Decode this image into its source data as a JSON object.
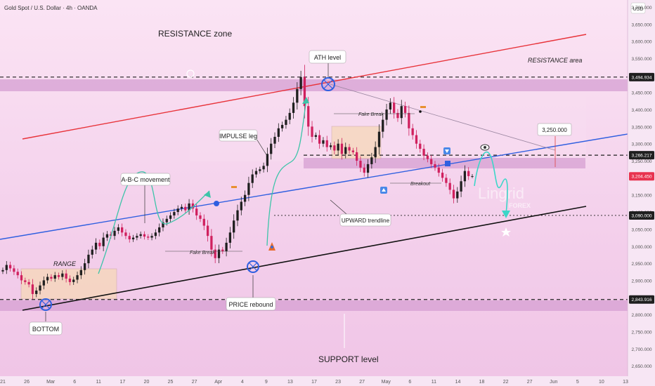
{
  "header": {
    "symbol": "Gold Spot / U.S. Dollar · 4h · OANDA",
    "currency": "USD"
  },
  "watermark": {
    "brand": "Lingrid",
    "sub": "FOREX"
  },
  "colors": {
    "candle_up": "#1f1f1f",
    "candle_down": "#d0205e",
    "zone_band": "#c98fc4",
    "channel_red": "#e8333a",
    "trendline_blue": "#2f5fe0",
    "support_black": "#111111",
    "projection_cyan": "#3cd6c8",
    "price_badge": "#e8334f"
  },
  "annotations": {
    "resistance_zone": "RESISTANCE zone",
    "resistance_area": "RESISTANCE area",
    "ath_level": "ATH level",
    "impulse_leg": "IMPULSE leg",
    "abc_movement": "A-B-C movement",
    "range": "RANGE",
    "bottom": "BOTTOM",
    "fake_break_1": "Fake Break",
    "fake_break_2": "Fake Break",
    "breakout": "Breakout",
    "price_rebound": "PRICE rebound",
    "upward_trendline": "UPWARD trendline",
    "support_level": "SUPPORT level",
    "target_box": "3,250.000"
  },
  "chart_data": {
    "type": "candlestick",
    "y_axis_unit": "USD",
    "ylim": [
      2640,
      3700
    ],
    "y_ticks": [
      "3,700.000",
      "3,650.000",
      "3,600.000",
      "3,550.000",
      "3,500.000",
      "3,450.000",
      "3,400.000",
      "3,350.000",
      "3,300.000",
      "3,250.000",
      "3,200.000",
      "3,150.000",
      "3,100.000",
      "3,050.000",
      "3,000.000",
      "2,950.000",
      "2,900.000",
      "2,850.000",
      "2,800.000",
      "2,750.000",
      "2,700.000",
      "2,650.000"
    ],
    "x_ticks": [
      "21",
      "26",
      "Mar",
      "6",
      "11",
      "17",
      "20",
      "25",
      "27",
      "Apr",
      "4",
      "9",
      "13",
      "17",
      "23",
      "27",
      "May",
      "6",
      "11",
      "14",
      "18",
      "22",
      "27",
      "Jun",
      "5",
      "10",
      "13"
    ],
    "price_labels": [
      {
        "label": "3,494.934",
        "value": 3494.934,
        "color": "#1f1f1f"
      },
      {
        "label": "3,266.217",
        "value": 3266.217,
        "color": "#1f1f1f"
      },
      {
        "label": "3,204.450",
        "value": 3204.45,
        "color": "#e8334f"
      },
      {
        "label": "3,090.000",
        "value": 3090.0,
        "color": "#1f1f1f"
      },
      {
        "label": "2,843.916",
        "value": 2843.916,
        "color": "#1f1f1f"
      }
    ],
    "levels": {
      "resistance": 3494.934,
      "breakout": 3266.217,
      "target": 3090.0,
      "support": 2843.916
    },
    "series": [
      {
        "values": [
          2930,
          2945,
          2935,
          2925,
          2915,
          2900,
          2895,
          2888,
          2860,
          2870,
          2885,
          2900,
          2910,
          2905,
          2915,
          2910,
          2920,
          2905,
          2895,
          2902,
          2915,
          2930,
          2950,
          2975,
          2990,
          3010,
          3000,
          3025,
          3035,
          3030,
          3045,
          3055,
          3040,
          3030,
          3020,
          3025,
          3030,
          3035,
          3028,
          3025,
          3030,
          3040,
          3055,
          3070,
          3080,
          3090,
          3100,
          3110,
          3115,
          3105,
          3125,
          3110,
          3090,
          3080,
          3060,
          3030,
          2990,
          2965,
          2990,
          2985,
          3010,
          3040,
          3075,
          3105,
          3130,
          3150,
          3185,
          3210,
          3220,
          3225,
          3235,
          3270,
          3300,
          3320,
          3345,
          3355,
          3370,
          3390,
          3420,
          3460,
          3495,
          3410,
          3350,
          3320,
          3325,
          3300,
          3310,
          3290,
          3295,
          3280,
          3300,
          3270,
          3290,
          3280,
          3275,
          3250,
          3230,
          3215,
          3240,
          3260,
          3290,
          3335,
          3370,
          3400,
          3420,
          3390,
          3375,
          3410,
          3390,
          3345,
          3325,
          3300,
          3285,
          3265,
          3255,
          3240,
          3230,
          3215,
          3200,
          3185,
          3165,
          3140,
          3160,
          3190,
          3220,
          3205,
          3205
        ]
      }
    ]
  }
}
